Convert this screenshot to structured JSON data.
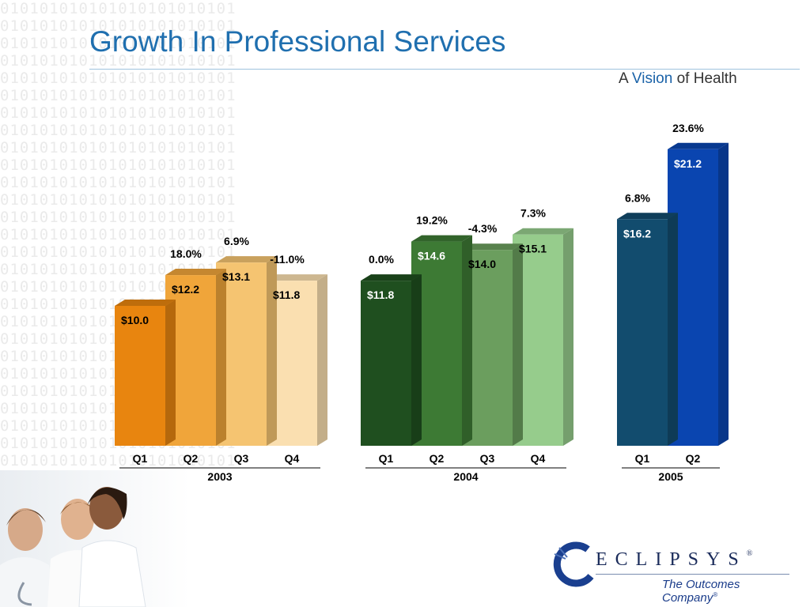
{
  "title": "Growth In Professional Services",
  "tagline": {
    "part1": "A",
    "part2": "Vision",
    "part3": "of Health"
  },
  "logo": {
    "wordmark": "ECLIPSYS",
    "registered": "®",
    "tagline": "The Outcomes Company",
    "tagline_registered": "®"
  },
  "colors": {
    "title": "#1f6faf",
    "y2003": [
      "#e8850f",
      "#f0a53a",
      "#f5c471",
      "#fadfb0"
    ],
    "y2004": [
      "#1f4f1f",
      "#3d7a34",
      "#6b9e5e",
      "#96cc8c"
    ],
    "y2005": [
      "#124c6e",
      "#0a45b0"
    ]
  },
  "chart_data": {
    "type": "bar",
    "title": "Growth In Professional Services",
    "ylim": [
      0,
      25
    ],
    "grid": false,
    "legend": "none",
    "groups": [
      {
        "year": "2003",
        "categories": [
          "Q1",
          "Q2",
          "Q3",
          "Q4"
        ],
        "values": [
          10.0,
          12.2,
          13.1,
          11.8
        ],
        "value_labels": [
          "$10.0",
          "$12.2",
          "$13.1",
          "$11.8"
        ],
        "growth_labels": [
          "",
          "18.0%",
          "6.9%",
          "-11.0%"
        ]
      },
      {
        "year": "2004",
        "categories": [
          "Q1",
          "Q2",
          "Q3",
          "Q4"
        ],
        "values": [
          11.8,
          14.6,
          14.0,
          15.1
        ],
        "value_labels": [
          "$11.8",
          "$14.6",
          "$14.0",
          "$15.1"
        ],
        "growth_labels": [
          "0.0%",
          "19.2%",
          "-4.3%",
          "7.3%"
        ]
      },
      {
        "year": "2005",
        "categories": [
          "Q1",
          "Q2"
        ],
        "values": [
          16.2,
          21.2
        ],
        "value_labels": [
          "$16.2",
          "$21.2"
        ],
        "growth_labels": [
          "6.8%",
          "23.6%"
        ]
      }
    ]
  }
}
